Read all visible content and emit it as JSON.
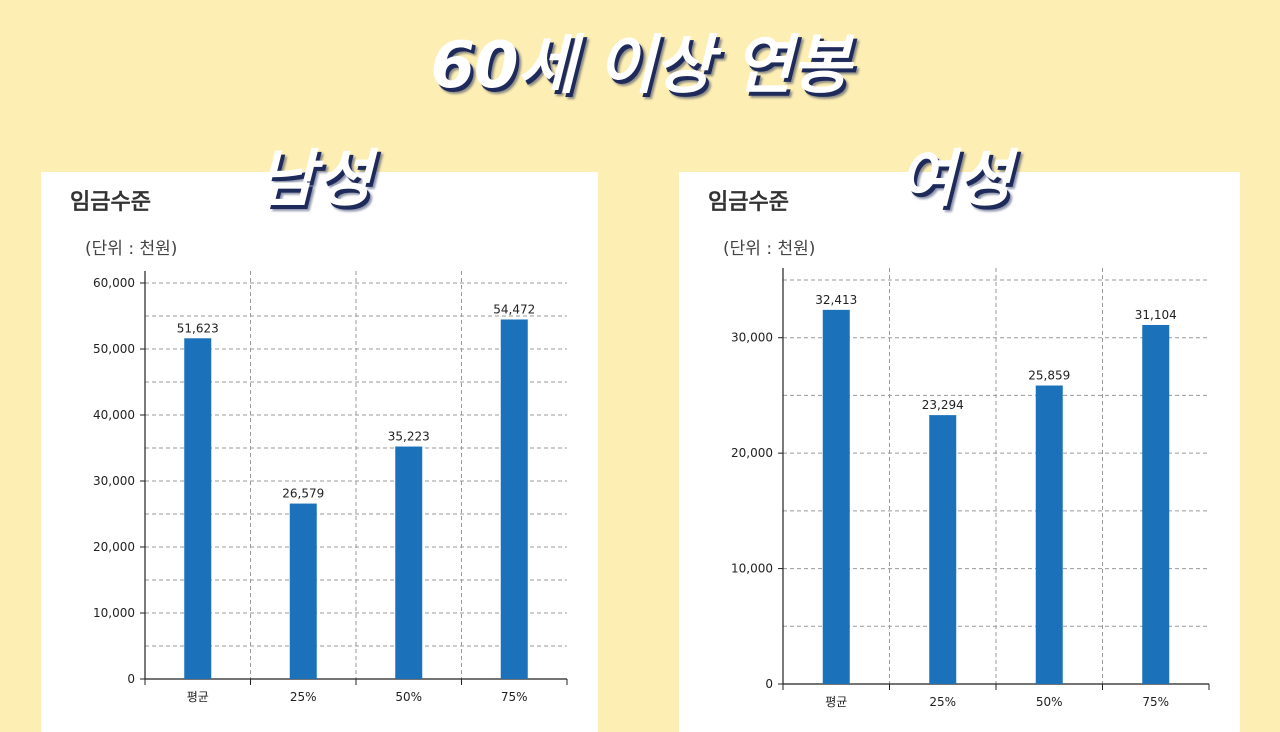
{
  "page": {
    "title": "60세 이상 연봉"
  },
  "colors": {
    "background": "#fdeeb3",
    "bar": "#1b72ba",
    "title_shadow": "#1e2a5a"
  },
  "chart_data": [
    {
      "type": "bar",
      "label": "남성",
      "title": "임금수준",
      "subtitle": "(단위 : 천원)",
      "categories": [
        "평균",
        "25%",
        "50%",
        "75%"
      ],
      "values": [
        51623,
        26579,
        35223,
        54472
      ],
      "value_labels": [
        "51,623",
        "26,579",
        "35,223",
        "54,472"
      ],
      "yticks": [
        0,
        10000,
        20000,
        30000,
        40000,
        50000,
        60000
      ],
      "ytick_labels": [
        "0",
        "10,000",
        "20,000",
        "30,000",
        "40,000",
        "50,000",
        "60,000"
      ],
      "ylim": [
        0,
        60000
      ],
      "grid": true
    },
    {
      "type": "bar",
      "label": "여성",
      "title": "임금수준",
      "subtitle": "(단위 : 천원)",
      "categories": [
        "평균",
        "25%",
        "50%",
        "75%"
      ],
      "values": [
        32413,
        23294,
        25859,
        31104
      ],
      "value_labels": [
        "32,413",
        "23,294",
        "25,859",
        "31,104"
      ],
      "yticks": [
        0,
        10000,
        20000,
        30000
      ],
      "ytick_labels": [
        "0",
        "10,000",
        "20,000",
        "30,000"
      ],
      "ylim": [
        0,
        35000
      ],
      "grid": true
    }
  ]
}
